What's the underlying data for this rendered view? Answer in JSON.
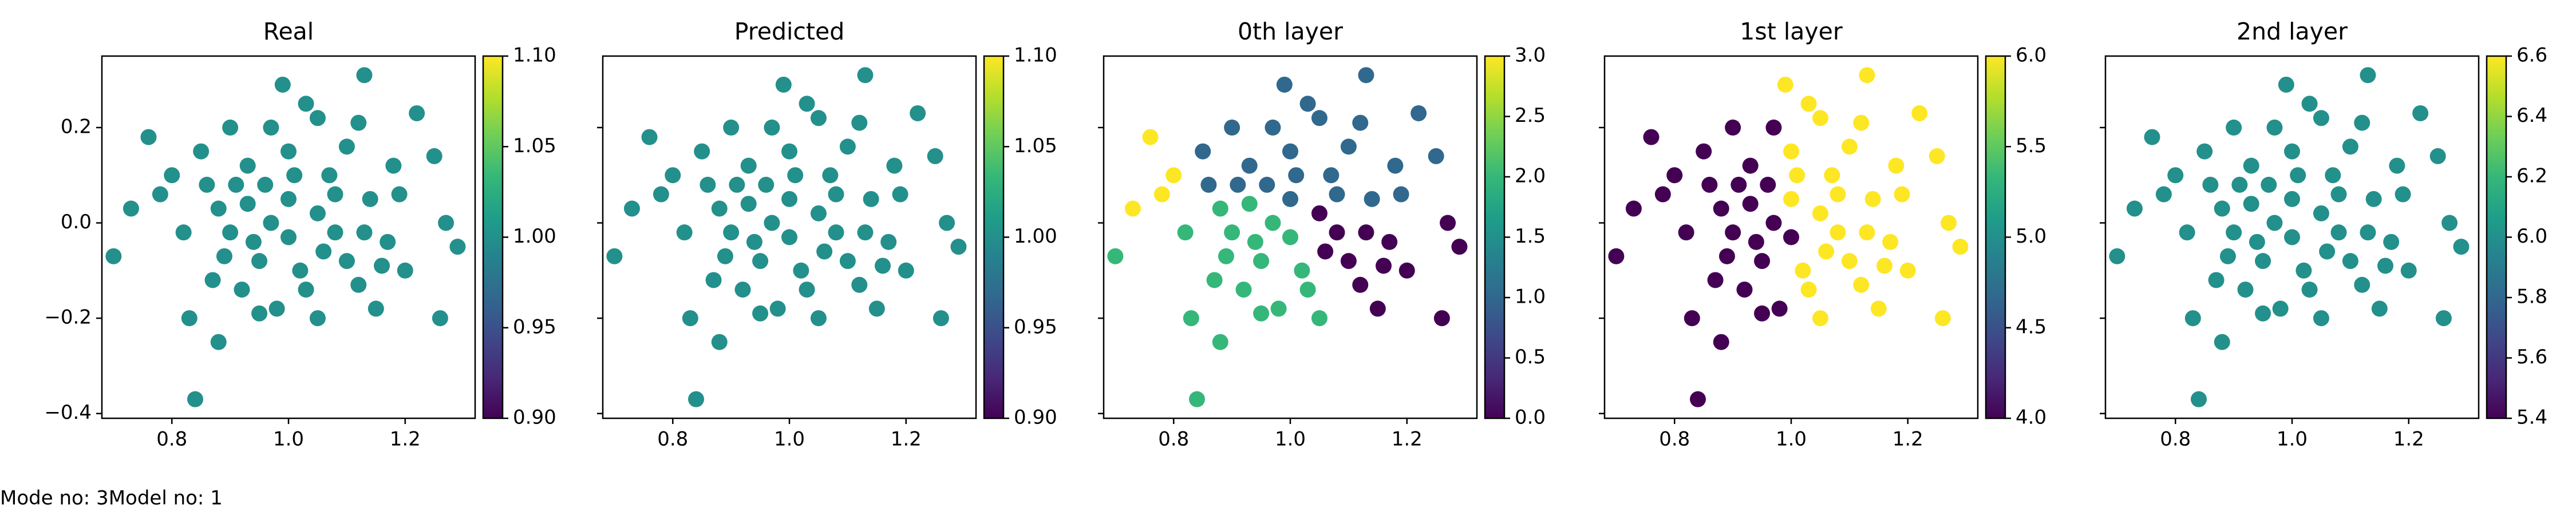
{
  "footer_text": "Mode no: 3Model no: 1",
  "chart_data": [
    {
      "type": "scatter",
      "title": "Real",
      "cmap": "viridis",
      "x": [
        0.7,
        0.84,
        0.99,
        1.13,
        1.29,
        1.26,
        0.88,
        0.76,
        1.22,
        0.73,
        0.8,
        0.83,
        0.9,
        1.05,
        1.1,
        1.18,
        1.25,
        1.27,
        1.2,
        1.15,
        1.05,
        0.95,
        0.87,
        0.82,
        0.86,
        0.93,
        1.0,
        1.07,
        1.14,
        1.17,
        1.1,
        1.02,
        0.95,
        0.9,
        0.93,
        1.0,
        1.05,
        1.08,
        1.0,
        0.97,
        1.03,
        0.92,
        1.12,
        1.19,
        0.97,
        1.03,
        0.85,
        0.78,
        0.88,
        1.12,
        0.98,
        1.08,
        0.96,
        1.06,
        1.13,
        0.91,
        1.01,
        0.94,
        1.16,
        0.89
      ],
      "values": [
        -0.07,
        -0.37,
        0.29,
        0.31,
        -0.05,
        -0.2,
        -0.25,
        0.18,
        0.23,
        0.03,
        0.1,
        -0.2,
        0.2,
        0.22,
        0.16,
        0.12,
        0.14,
        0.0,
        -0.1,
        -0.18,
        -0.2,
        -0.19,
        -0.12,
        -0.02,
        0.08,
        0.12,
        0.15,
        0.1,
        0.05,
        -0.04,
        -0.08,
        -0.1,
        -0.08,
        -0.02,
        0.04,
        0.05,
        0.02,
        -0.02,
        -0.03,
        0.0,
        -0.14,
        -0.14,
        -0.13,
        0.06,
        0.2,
        0.25,
        0.15,
        0.06,
        0.03,
        0.21,
        -0.18,
        0.06,
        0.08,
        -0.06,
        -0.02,
        0.08,
        0.1,
        -0.04,
        -0.09,
        -0.07
      ],
      "color_values": [
        1,
        1,
        1,
        1,
        1,
        1,
        1,
        1,
        1,
        1,
        1,
        1,
        1,
        1,
        1,
        1,
        1,
        1,
        1,
        1,
        1,
        1,
        1,
        1,
        1,
        1,
        1,
        1,
        1,
        1,
        1,
        1,
        1,
        1,
        1,
        1,
        1,
        1,
        1,
        1,
        1,
        1,
        1,
        1,
        1,
        1,
        1,
        1,
        1,
        1,
        1,
        1,
        1,
        1,
        1,
        1,
        1,
        1,
        1,
        1
      ],
      "xlim": [
        0.68,
        1.32
      ],
      "ylim": [
        -0.41,
        0.35
      ],
      "xticks": [
        0.8,
        {
          "value": 1.0,
          "label": "1.0"
        },
        1.2
      ],
      "yticks": [
        {
          "value": -0.4,
          "label": "−0.4"
        },
        {
          "value": -0.2,
          "label": "−0.2"
        },
        {
          "value": 0,
          "label": "0.0"
        },
        0.2
      ],
      "show_ytick_labels": true,
      "clim": [
        0.9,
        1.1
      ],
      "cticks": [
        {
          "value": 0.9,
          "label": "0.90"
        },
        0.95,
        {
          "value": 1.0,
          "label": "1.00"
        },
        1.05,
        {
          "value": 1.1,
          "label": "1.10"
        }
      ]
    },
    {
      "type": "scatter",
      "title": "Predicted",
      "cmap": "viridis",
      "x": [
        0.7,
        0.84,
        0.99,
        1.13,
        1.29,
        1.26,
        0.88,
        0.76,
        1.22,
        0.73,
        0.8,
        0.83,
        0.9,
        1.05,
        1.1,
        1.18,
        1.25,
        1.27,
        1.2,
        1.15,
        1.05,
        0.95,
        0.87,
        0.82,
        0.86,
        0.93,
        1.0,
        1.07,
        1.14,
        1.17,
        1.1,
        1.02,
        0.95,
        0.9,
        0.93,
        1.0,
        1.05,
        1.08,
        1.0,
        0.97,
        1.03,
        0.92,
        1.12,
        1.19,
        0.97,
        1.03,
        0.85,
        0.78,
        0.88,
        1.12,
        0.98,
        1.08,
        0.96,
        1.06,
        1.13,
        0.91,
        1.01,
        0.94,
        1.16,
        0.89
      ],
      "values": [
        -0.07,
        -0.37,
        0.29,
        0.31,
        -0.05,
        -0.2,
        -0.25,
        0.18,
        0.23,
        0.03,
        0.1,
        -0.2,
        0.2,
        0.22,
        0.16,
        0.12,
        0.14,
        0.0,
        -0.1,
        -0.18,
        -0.2,
        -0.19,
        -0.12,
        -0.02,
        0.08,
        0.12,
        0.15,
        0.1,
        0.05,
        -0.04,
        -0.08,
        -0.1,
        -0.08,
        -0.02,
        0.04,
        0.05,
        0.02,
        -0.02,
        -0.03,
        0.0,
        -0.14,
        -0.14,
        -0.13,
        0.06,
        0.2,
        0.25,
        0.15,
        0.06,
        0.03,
        0.21,
        -0.18,
        0.06,
        0.08,
        -0.06,
        -0.02,
        0.08,
        0.1,
        -0.04,
        -0.09,
        -0.07
      ],
      "color_values": [
        1,
        1,
        1,
        1,
        1,
        1,
        1,
        1,
        1,
        1,
        1,
        1,
        1,
        1,
        1,
        1,
        1,
        1,
        1,
        1,
        1,
        1,
        1,
        1,
        1,
        1,
        1,
        1,
        1,
        1,
        1,
        1,
        1,
        1,
        1,
        1,
        1,
        1,
        1,
        1,
        1,
        1,
        1,
        1,
        1,
        1,
        1,
        1,
        1,
        1,
        1,
        1,
        1,
        1,
        1,
        1,
        1,
        1,
        1,
        1
      ],
      "xlim": [
        0.68,
        1.32
      ],
      "ylim": [
        -0.41,
        0.35
      ],
      "xticks": [
        0.8,
        {
          "value": 1.0,
          "label": "1.0"
        },
        1.2
      ],
      "yticks": [
        -0.4,
        -0.2,
        0,
        0.2
      ],
      "show_ytick_labels": false,
      "clim": [
        0.9,
        1.1
      ],
      "cticks": [
        {
          "value": 0.9,
          "label": "0.90"
        },
        0.95,
        {
          "value": 1.0,
          "label": "1.00"
        },
        1.05,
        {
          "value": 1.1,
          "label": "1.10"
        }
      ]
    },
    {
      "type": "scatter",
      "title": "0th layer",
      "cmap": "viridis",
      "x": [
        0.7,
        0.84,
        0.99,
        1.13,
        1.29,
        1.26,
        0.88,
        0.76,
        1.22,
        0.73,
        0.8,
        0.83,
        0.9,
        1.05,
        1.1,
        1.18,
        1.25,
        1.27,
        1.2,
        1.15,
        1.05,
        0.95,
        0.87,
        0.82,
        0.86,
        0.93,
        1.0,
        1.07,
        1.14,
        1.17,
        1.1,
        1.02,
        0.95,
        0.9,
        0.93,
        1.0,
        1.05,
        1.08,
        1.0,
        0.97,
        1.03,
        0.92,
        1.12,
        1.19,
        0.97,
        1.03,
        0.85,
        0.78,
        0.88,
        1.12,
        0.98,
        1.08,
        0.96,
        1.06,
        1.13,
        0.91,
        1.01,
        0.94,
        1.16,
        0.89
      ],
      "values": [
        -0.07,
        -0.37,
        0.29,
        0.31,
        -0.05,
        -0.2,
        -0.25,
        0.18,
        0.23,
        0.03,
        0.1,
        -0.2,
        0.2,
        0.22,
        0.16,
        0.12,
        0.14,
        0.0,
        -0.1,
        -0.18,
        -0.2,
        -0.19,
        -0.12,
        -0.02,
        0.08,
        0.12,
        0.15,
        0.1,
        0.05,
        -0.04,
        -0.08,
        -0.1,
        -0.08,
        -0.02,
        0.04,
        0.05,
        0.02,
        -0.02,
        -0.03,
        0.0,
        -0.14,
        -0.14,
        -0.13,
        0.06,
        0.2,
        0.25,
        0.15,
        0.06,
        0.03,
        0.21,
        -0.18,
        0.06,
        0.08,
        -0.06,
        -0.02,
        0.08,
        0.1,
        -0.04,
        -0.09,
        -0.07
      ],
      "color_values": [
        2,
        2,
        1,
        1,
        0,
        0,
        2,
        3,
        1,
        3,
        3,
        2,
        1,
        1,
        1,
        1,
        1,
        0,
        0,
        0,
        2,
        2,
        2,
        2,
        1,
        1,
        1,
        1,
        1,
        0,
        0,
        2,
        2,
        2,
        2,
        1,
        0,
        0,
        2,
        2,
        2,
        2,
        0,
        1,
        1,
        1,
        1,
        3,
        2,
        1,
        2,
        1,
        1,
        0,
        0,
        1,
        1,
        2,
        0,
        2
      ],
      "xlim": [
        0.68,
        1.32
      ],
      "ylim": [
        -0.41,
        0.35
      ],
      "xticks": [
        0.8,
        {
          "value": 1.0,
          "label": "1.0"
        },
        1.2
      ],
      "yticks": [
        -0.4,
        -0.2,
        0,
        0.2
      ],
      "show_ytick_labels": false,
      "clim": [
        0,
        3
      ],
      "cticks": [
        {
          "value": 0,
          "label": "0.0"
        },
        0.5,
        {
          "value": 1,
          "label": "1.0"
        },
        1.5,
        {
          "value": 2,
          "label": "2.0"
        },
        2.5,
        {
          "value": 3,
          "label": "3.0"
        }
      ]
    },
    {
      "type": "scatter",
      "title": "1st layer",
      "cmap": "viridis",
      "x": [
        0.7,
        0.84,
        0.99,
        1.13,
        1.29,
        1.26,
        0.88,
        0.76,
        1.22,
        0.73,
        0.8,
        0.83,
        0.9,
        1.05,
        1.1,
        1.18,
        1.25,
        1.27,
        1.2,
        1.15,
        1.05,
        0.95,
        0.87,
        0.82,
        0.86,
        0.93,
        1.0,
        1.07,
        1.14,
        1.17,
        1.1,
        1.02,
        0.95,
        0.9,
        0.93,
        1.0,
        1.05,
        1.08,
        1.0,
        0.97,
        1.03,
        0.92,
        1.12,
        1.19,
        0.97,
        1.03,
        0.85,
        0.78,
        0.88,
        1.12,
        0.98,
        1.08,
        0.96,
        1.06,
        1.13,
        0.91,
        1.01,
        0.94,
        1.16,
        0.89
      ],
      "values": [
        -0.07,
        -0.37,
        0.29,
        0.31,
        -0.05,
        -0.2,
        -0.25,
        0.18,
        0.23,
        0.03,
        0.1,
        -0.2,
        0.2,
        0.22,
        0.16,
        0.12,
        0.14,
        0.0,
        -0.1,
        -0.18,
        -0.2,
        -0.19,
        -0.12,
        -0.02,
        0.08,
        0.12,
        0.15,
        0.1,
        0.05,
        -0.04,
        -0.08,
        -0.1,
        -0.08,
        -0.02,
        0.04,
        0.05,
        0.02,
        -0.02,
        -0.03,
        0.0,
        -0.14,
        -0.14,
        -0.13,
        0.06,
        0.2,
        0.25,
        0.15,
        0.06,
        0.03,
        0.21,
        -0.18,
        0.06,
        0.08,
        -0.06,
        -0.02,
        0.08,
        0.1,
        -0.04,
        -0.09,
        -0.07
      ],
      "color_values": [
        4,
        4,
        6,
        6,
        6,
        6,
        4,
        4,
        6,
        4,
        4,
        4,
        4,
        6,
        6,
        6,
        6,
        6,
        6,
        6,
        6,
        4,
        4,
        4,
        4,
        4,
        6,
        6,
        6,
        6,
        6,
        6,
        4,
        4,
        4,
        6,
        6,
        6,
        4,
        4,
        6,
        4,
        6,
        6,
        4,
        6,
        4,
        4,
        4,
        6,
        4,
        6,
        4,
        6,
        6,
        4,
        6,
        4,
        6,
        4
      ],
      "xlim": [
        0.68,
        1.32
      ],
      "ylim": [
        -0.41,
        0.35
      ],
      "xticks": [
        0.8,
        {
          "value": 1.0,
          "label": "1.0"
        },
        1.2
      ],
      "yticks": [
        -0.4,
        -0.2,
        0,
        0.2
      ],
      "show_ytick_labels": false,
      "clim": [
        4,
        6
      ],
      "cticks": [
        {
          "value": 4,
          "label": "4.0"
        },
        4.5,
        {
          "value": 5,
          "label": "5.0"
        },
        5.5,
        {
          "value": 6,
          "label": "6.0"
        }
      ]
    },
    {
      "type": "scatter",
      "title": "2nd layer",
      "cmap": "viridis",
      "x": [
        0.7,
        0.84,
        0.99,
        1.13,
        1.29,
        1.26,
        0.88,
        0.76,
        1.22,
        0.73,
        0.8,
        0.83,
        0.9,
        1.05,
        1.1,
        1.18,
        1.25,
        1.27,
        1.2,
        1.15,
        1.05,
        0.95,
        0.87,
        0.82,
        0.86,
        0.93,
        1.0,
        1.07,
        1.14,
        1.17,
        1.1,
        1.02,
        0.95,
        0.9,
        0.93,
        1.0,
        1.05,
        1.08,
        1.0,
        0.97,
        1.03,
        0.92,
        1.12,
        1.19,
        0.97,
        1.03,
        0.85,
        0.78,
        0.88,
        1.12,
        0.98,
        1.08,
        0.96,
        1.06,
        1.13,
        0.91,
        1.01,
        0.94,
        1.16,
        0.89
      ],
      "values": [
        -0.07,
        -0.37,
        0.29,
        0.31,
        -0.05,
        -0.2,
        -0.25,
        0.18,
        0.23,
        0.03,
        0.1,
        -0.2,
        0.2,
        0.22,
        0.16,
        0.12,
        0.14,
        0.0,
        -0.1,
        -0.18,
        -0.2,
        -0.19,
        -0.12,
        -0.02,
        0.08,
        0.12,
        0.15,
        0.1,
        0.05,
        -0.04,
        -0.08,
        -0.1,
        -0.08,
        -0.02,
        0.04,
        0.05,
        0.02,
        -0.02,
        -0.03,
        0.0,
        -0.14,
        -0.14,
        -0.13,
        0.06,
        0.2,
        0.25,
        0.15,
        0.06,
        0.03,
        0.21,
        -0.18,
        0.06,
        0.08,
        -0.06,
        -0.02,
        0.08,
        0.1,
        -0.04,
        -0.09,
        -0.07
      ],
      "color_values": [
        6,
        6,
        6,
        6,
        6,
        6,
        6,
        6,
        6,
        6,
        6,
        6,
        6,
        6,
        6,
        6,
        6,
        6,
        6,
        6,
        6,
        6,
        6,
        6,
        6,
        6,
        6,
        6,
        6,
        6,
        6,
        6,
        6,
        6,
        6,
        6,
        6,
        6,
        6,
        6,
        6,
        6,
        6,
        6,
        6,
        6,
        6,
        6,
        6,
        6,
        6,
        6,
        6,
        6,
        6,
        6,
        6,
        6,
        6,
        6
      ],
      "xlim": [
        0.68,
        1.32
      ],
      "ylim": [
        -0.41,
        0.35
      ],
      "xticks": [
        0.8,
        {
          "value": 1.0,
          "label": "1.0"
        },
        1.2
      ],
      "yticks": [
        -0.4,
        -0.2,
        0,
        0.2
      ],
      "show_ytick_labels": false,
      "clim": [
        5.4,
        6.6
      ],
      "cticks": [
        5.4,
        5.6,
        5.8,
        {
          "value": 6,
          "label": "6.0"
        },
        6.2,
        6.4,
        6.6
      ]
    }
  ]
}
